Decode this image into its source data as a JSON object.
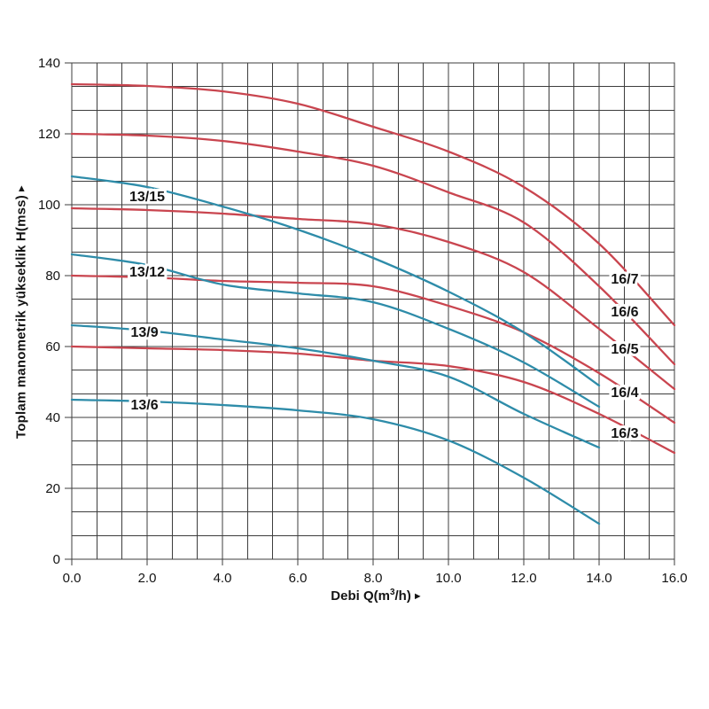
{
  "figure": {
    "kind": "pump-performance-curves",
    "background": "#ffffff"
  },
  "colors": {
    "red": "#c9454f",
    "blue": "#2e8ca9",
    "grid": "#3d3d3d",
    "text": "#141414",
    "halo": "#ffffff"
  },
  "axes": {
    "x": {
      "title_pre": "Debi Q(m",
      "title_sup": "3",
      "title_post": "/h)",
      "arrow": "►",
      "min": 0,
      "max": 16,
      "label_step": 2,
      "minor_step": 0.6667,
      "tick_labels": [
        "0.0",
        "2.0",
        "4.0",
        "6.0",
        "8.0",
        "10.0",
        "12.0",
        "14.0",
        "16.0"
      ]
    },
    "y": {
      "title": "Toplam manometrik yükseklik H(mss)",
      "arrow": "►",
      "min": 0,
      "max": 140,
      "label_step": 20,
      "minor_step": 6.6667,
      "tick_labels": [
        "0",
        "20",
        "40",
        "60",
        "80",
        "100",
        "120",
        "140"
      ]
    }
  },
  "chart_data": {
    "type": "line",
    "title": "",
    "xlabel": "Debi Q(m3/h)",
    "ylabel": "Toplam manometrik yukseklik H(mss)",
    "xlim": [
      0,
      16
    ],
    "ylim": [
      0,
      140
    ],
    "grid": true,
    "legend_position": "inline-labels",
    "series": [
      {
        "name": "16/7",
        "color": "red",
        "x": [
          0,
          2,
          4,
          6,
          8,
          10,
          12,
          14,
          16
        ],
        "y": [
          134,
          133.5,
          132,
          128.5,
          122,
          115,
          105,
          89,
          66
        ],
        "label_at": {
          "q": 14.68,
          "h": 79
        }
      },
      {
        "name": "16/6",
        "color": "red",
        "x": [
          0,
          2,
          4,
          6,
          8,
          10,
          12,
          14,
          16
        ],
        "y": [
          120,
          119.5,
          118,
          115,
          111,
          103.5,
          95,
          77,
          55
        ],
        "label_at": {
          "q": 14.68,
          "h": 69.7
        }
      },
      {
        "name": "16/5",
        "color": "red",
        "x": [
          0,
          2,
          4,
          6,
          8,
          10,
          12,
          14,
          16
        ],
        "y": [
          99,
          98.5,
          97.5,
          96,
          94.5,
          89.5,
          81,
          65,
          48
        ],
        "label_at": {
          "q": 14.68,
          "h": 59.2
        }
      },
      {
        "name": "16/4",
        "color": "red",
        "x": [
          0,
          2,
          4,
          6,
          8,
          10,
          12,
          14,
          16
        ],
        "y": [
          80,
          79.5,
          78.5,
          78,
          77,
          71.5,
          64,
          52.5,
          38.5
        ],
        "label_at": {
          "q": 14.68,
          "h": 47
        }
      },
      {
        "name": "16/3",
        "color": "red",
        "x": [
          0,
          2,
          4,
          6,
          8,
          10,
          12,
          14,
          16
        ],
        "y": [
          60,
          59.5,
          59,
          58,
          56,
          54.5,
          50,
          41,
          30
        ],
        "label_at": {
          "q": 14.68,
          "h": 35.5
        }
      },
      {
        "name": "13/15",
        "color": "blue",
        "x": [
          0,
          2,
          4,
          6,
          8,
          10,
          12,
          14
        ],
        "y": [
          108,
          105,
          99.5,
          93,
          85,
          75.5,
          64,
          49
        ],
        "label_at": {
          "q": 2.0,
          "h": 102.3
        }
      },
      {
        "name": "13/12",
        "color": "blue",
        "x": [
          0,
          2,
          4,
          6,
          8,
          10,
          12,
          14
        ],
        "y": [
          86,
          83,
          77.5,
          75,
          72.5,
          65,
          55.5,
          43
        ],
        "label_at": {
          "q": 2.0,
          "h": 81
        }
      },
      {
        "name": "13/9",
        "color": "blue",
        "x": [
          0,
          2,
          4,
          6,
          8,
          10,
          12,
          14
        ],
        "y": [
          66,
          64.5,
          62,
          59.5,
          56,
          51.5,
          41,
          31.5
        ],
        "label_at": {
          "q": 1.93,
          "h": 64
        }
      },
      {
        "name": "13/6",
        "color": "blue",
        "x": [
          0,
          2,
          4,
          6,
          8,
          10,
          12,
          14
        ],
        "y": [
          45,
          44.5,
          43.5,
          42,
          39.5,
          33.5,
          23,
          10
        ],
        "label_at": {
          "q": 1.93,
          "h": 43.5
        }
      }
    ]
  }
}
